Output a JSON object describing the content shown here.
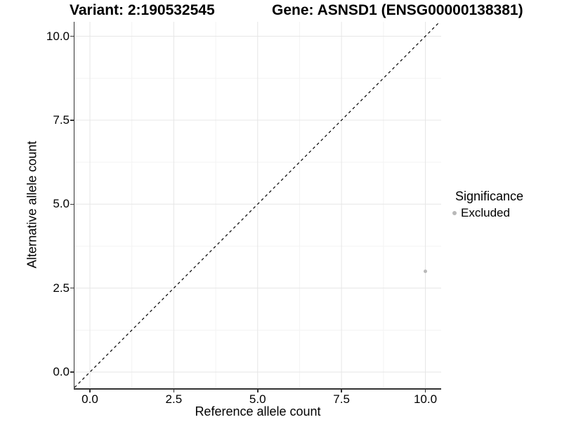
{
  "chart_data": {
    "type": "scatter",
    "title_left": "Variant: 2:190532545",
    "title_right": "Gene: ASNSD1 (ENSG00000138381)",
    "xlabel": "Reference allele count",
    "ylabel": "Alternative allele count",
    "xlim": [
      -0.46,
      10.46
    ],
    "ylim": [
      -0.46,
      10.46
    ],
    "x_ticks": [
      0,
      2.5,
      5,
      7.5,
      10
    ],
    "x_tick_labels": [
      "0.0",
      "2.5",
      "5.0",
      "7.5",
      "10.0"
    ],
    "y_ticks": [
      0,
      2.5,
      5,
      7.5,
      10
    ],
    "y_tick_labels": [
      "0.0",
      "2.5",
      "5.0",
      "7.5",
      "10.0"
    ],
    "x_minor_ticks": [
      1.25,
      3.75,
      6.25,
      8.75
    ],
    "y_minor_ticks": [
      1.25,
      3.75,
      6.25,
      8.75
    ],
    "grid": "major and minor gridlines on white panel, no top/right border",
    "reference_line": {
      "kind": "identity y = x",
      "style": "dashed",
      "color": "#000000"
    },
    "series": [
      {
        "name": "Excluded",
        "color": "#b9b9b9",
        "points": [
          {
            "x": 10,
            "y": 3
          }
        ]
      }
    ],
    "legend": {
      "title": "Significance",
      "position": "right",
      "items": [
        {
          "label": "Excluded",
          "color": "#b9b9b9"
        }
      ]
    }
  },
  "colors": {
    "background": "#ffffff",
    "grid_major": "#e6e6e6",
    "grid_minor": "#f3f3f3",
    "axis_line": "#333333",
    "tick_mark": "#333333",
    "text": "#000000"
  }
}
